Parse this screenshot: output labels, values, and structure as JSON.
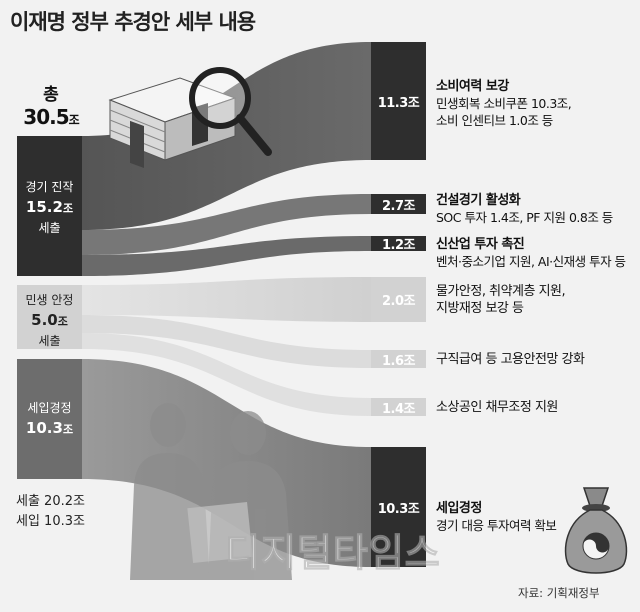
{
  "title": "이재명 정부 추경안 세부 내용",
  "total": {
    "label": "총",
    "value": "30.5",
    "unit": "조원"
  },
  "sources": [
    {
      "name": "경기 진작",
      "value": "15.2",
      "unit": "조",
      "kind": "세출"
    },
    {
      "name": "민생 안정",
      "value": "5.0",
      "unit": "조",
      "kind": "세출"
    },
    {
      "name": "세입경정",
      "value": "10.3",
      "unit": "조"
    }
  ],
  "summary": {
    "line1": "세출 20.2조",
    "line2": "세입 10.3조"
  },
  "targets": [
    {
      "amount": "11.3조",
      "value": 11.3,
      "title": "소비여력 보강",
      "details": [
        "민생회복 소비쿠폰 10.3조,",
        "소비 인센티브 1.0조 등"
      ]
    },
    {
      "amount": "2.7조",
      "value": 2.7,
      "title": "건설경기 활성화",
      "details": [
        "SOC 투자 1.4조, PF 지원 0.8조 등"
      ]
    },
    {
      "amount": "1.2조",
      "value": 1.2,
      "title": "신산업 투자 촉진",
      "details": [
        "벤처·중소기업 지원, AI·신재생 투자 등"
      ]
    },
    {
      "amount": "2.0조",
      "value": 2.0,
      "title": "물가안정, 취약계층 지원,",
      "details": [
        "지방재정 보강 등"
      ]
    },
    {
      "amount": "1.6조",
      "value": 1.6,
      "title": "구직급여 등 고용안전망 강화",
      "details": []
    },
    {
      "amount": "1.4조",
      "value": 1.4,
      "title": "소상공인 채무조정 지원",
      "details": []
    },
    {
      "amount": "10.3조",
      "value": 10.3,
      "title": "세입경정",
      "details": [
        "경기 대응 투자여력 확보"
      ]
    }
  ],
  "source_note": "자료: 기획재정부",
  "watermark": "디지털타임스",
  "colors": {
    "dark": "#2e2e2e",
    "mid": "#6d6d6d",
    "light": "#d2d2d2",
    "background": "#f2f2f2"
  },
  "icons": [
    "money-stack-icon",
    "magnifier-icon",
    "people-silhouette-icon",
    "money-bag-icon"
  ]
}
